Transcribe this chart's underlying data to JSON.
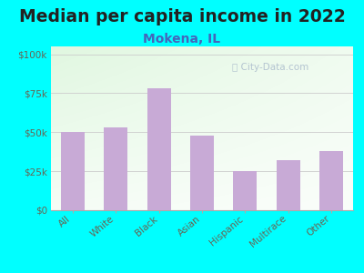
{
  "title": "Median per capita income in 2022",
  "subtitle": "Mokena, IL",
  "categories": [
    "All",
    "White",
    "Black",
    "Asian",
    "Hispanic",
    "Multirace",
    "Other"
  ],
  "values": [
    50000,
    53000,
    78000,
    48000,
    25000,
    32000,
    38000
  ],
  "bar_color": "#c8aad6",
  "background_outer": "#00ffff",
  "title_color": "#222222",
  "subtitle_color": "#4466bb",
  "tick_label_color": "#666655",
  "yticks": [
    0,
    25000,
    50000,
    75000,
    100000
  ],
  "ytick_labels": [
    "$0",
    "$25k",
    "$50k",
    "$75k",
    "$100k"
  ],
  "ylim": [
    0,
    105000
  ],
  "title_fontsize": 13.5,
  "subtitle_fontsize": 10,
  "watermark_text": "City-Data.com",
  "watermark_color": "#aabbcc",
  "grad_top_color": "#d0eecc",
  "grad_bottom_color": "#f8fff8",
  "grad_right_color": "#e8f8f8"
}
